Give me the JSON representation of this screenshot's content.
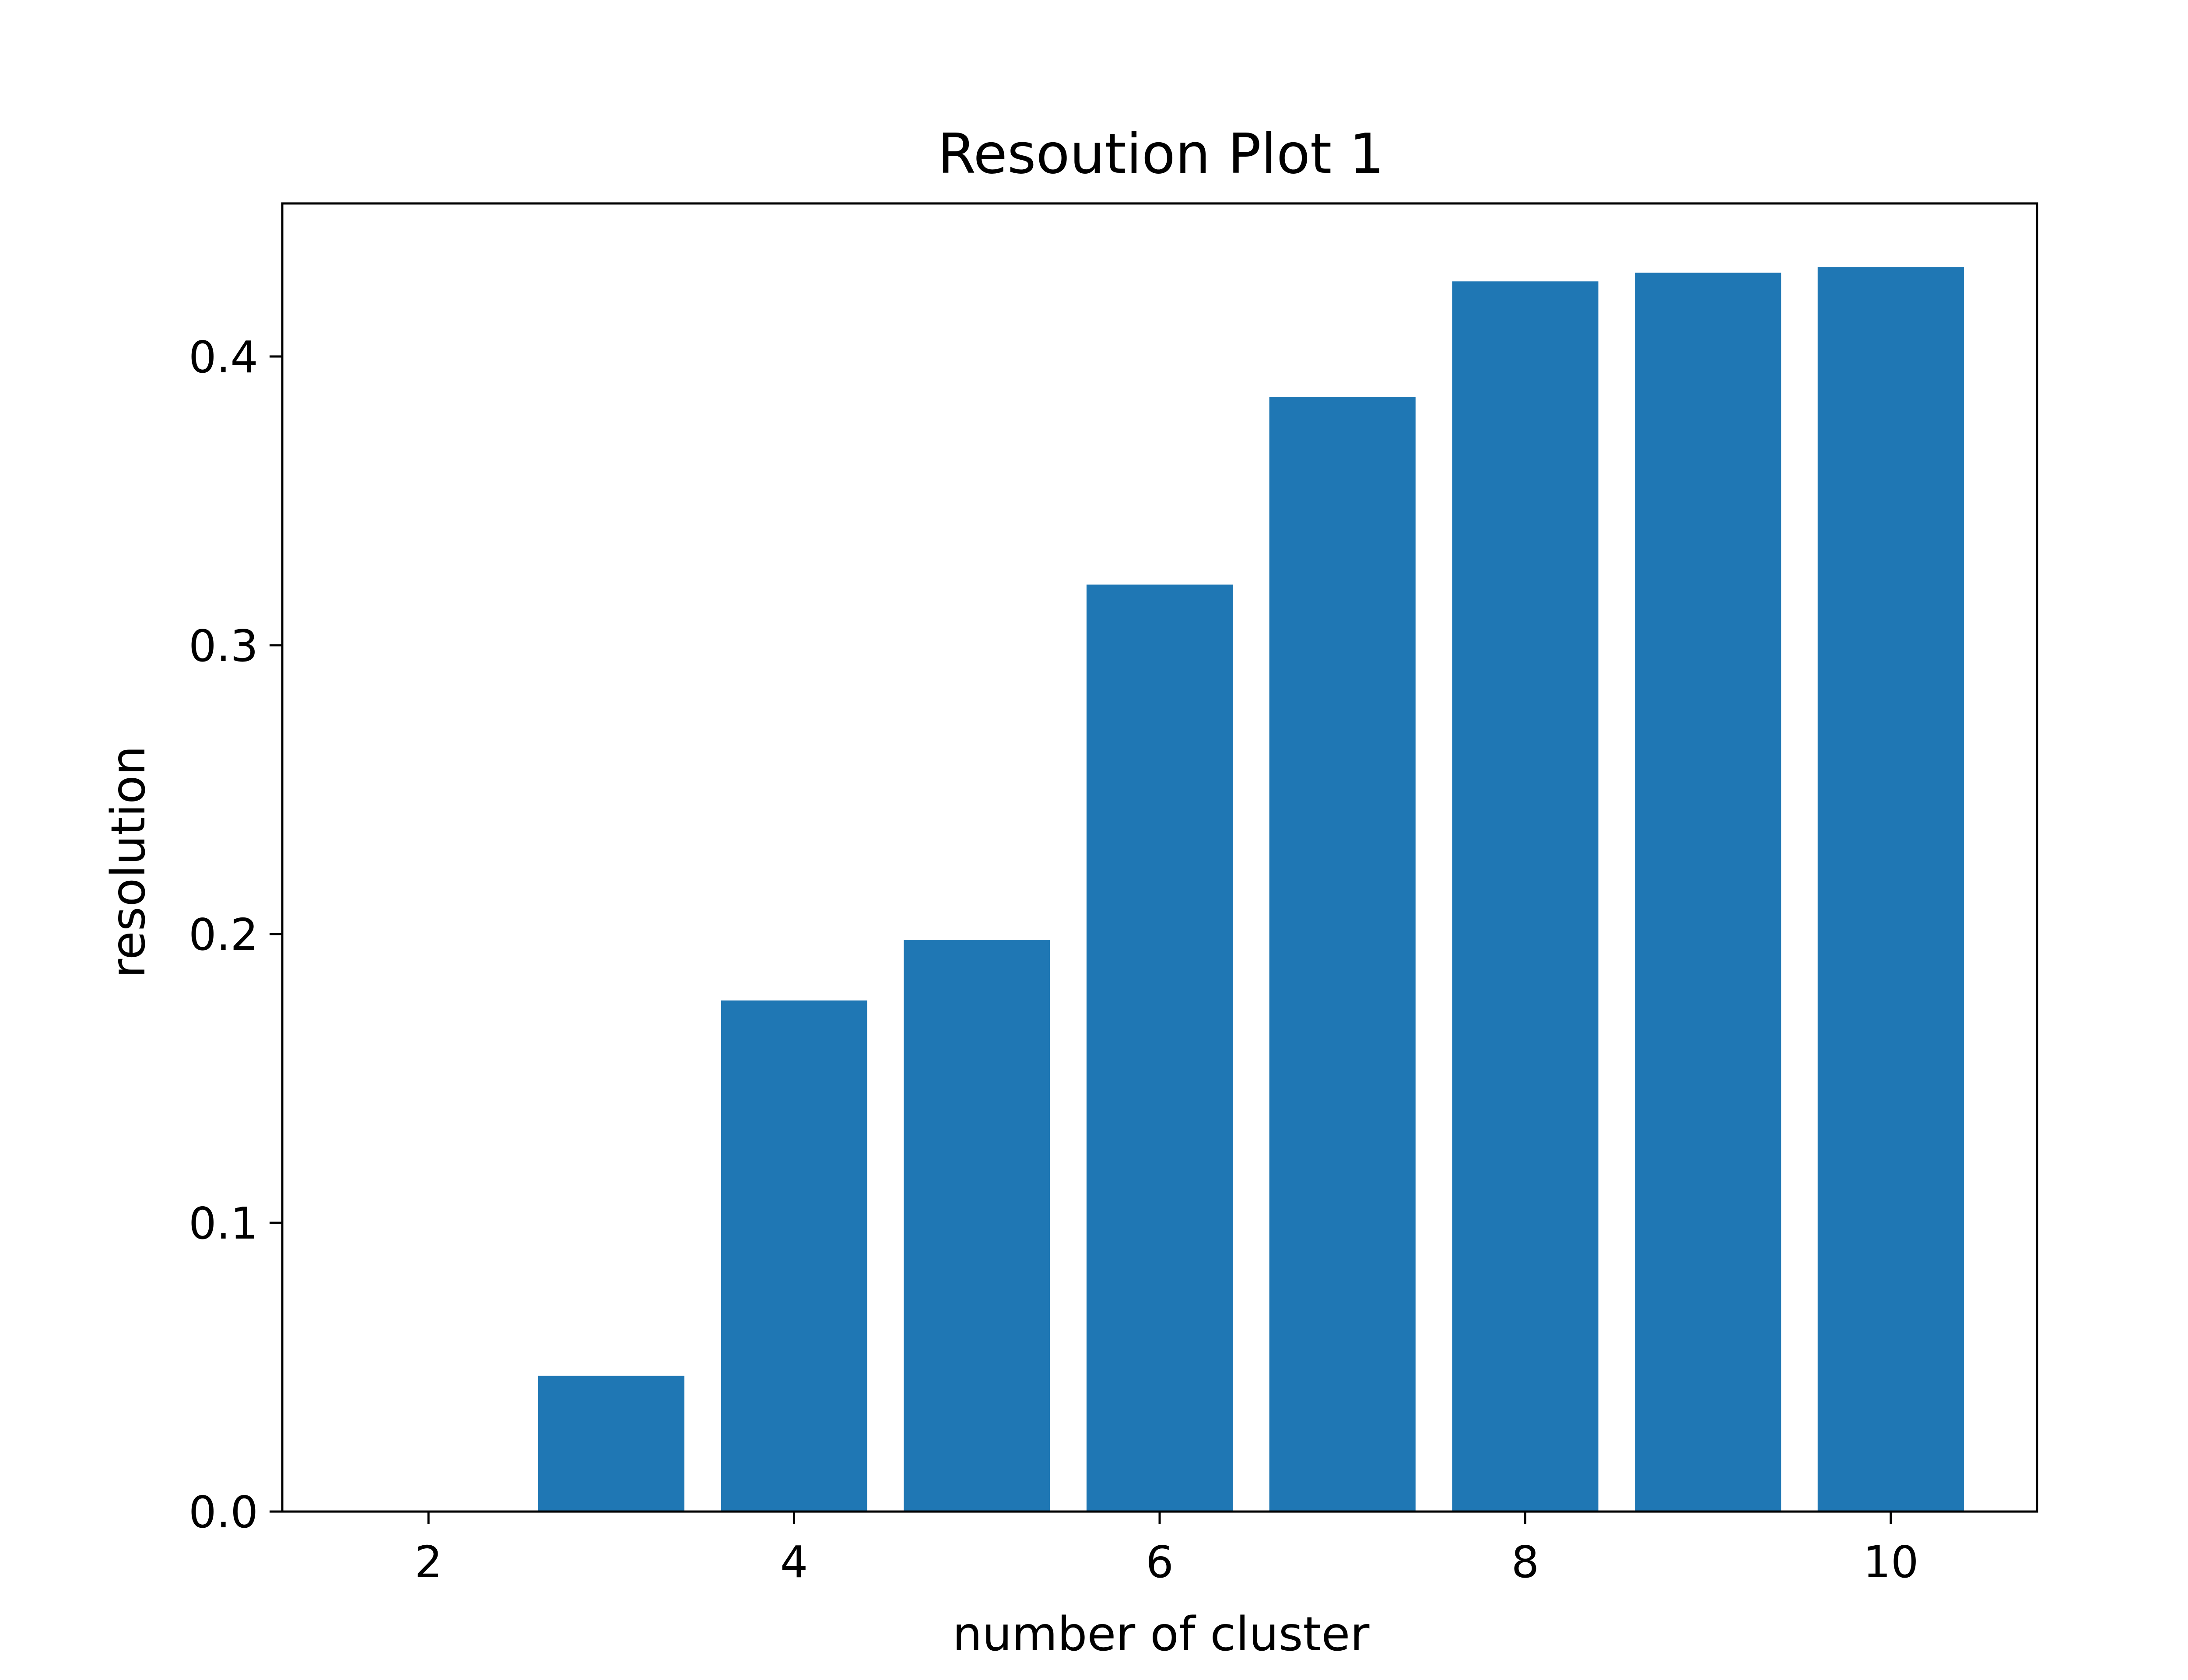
{
  "chart_data": {
    "type": "bar",
    "title": "Resoution Plot 1",
    "xlabel": "number of cluster",
    "ylabel": "resolution",
    "x": [
      2,
      3,
      4,
      5,
      6,
      7,
      8,
      9,
      10
    ],
    "values": [
      0.0,
      0.047,
      0.177,
      0.198,
      0.321,
      0.386,
      0.426,
      0.429,
      0.431
    ],
    "xlim": [
      1.2,
      10.8
    ],
    "ylim": [
      0.0,
      0.453
    ],
    "xticks": [
      2,
      4,
      6,
      8,
      10
    ],
    "xtick_labels": [
      "2",
      "4",
      "6",
      "8",
      "10"
    ],
    "yticks": [
      0.0,
      0.1,
      0.2,
      0.3,
      0.4
    ],
    "ytick_labels": [
      "0.0",
      "0.1",
      "0.2",
      "0.3",
      "0.4"
    ],
    "bar_width": 0.8,
    "grid": false,
    "legend": false,
    "colors": {
      "bar": "#1f77b4",
      "axes": "#000000",
      "background": "#ffffff"
    }
  }
}
